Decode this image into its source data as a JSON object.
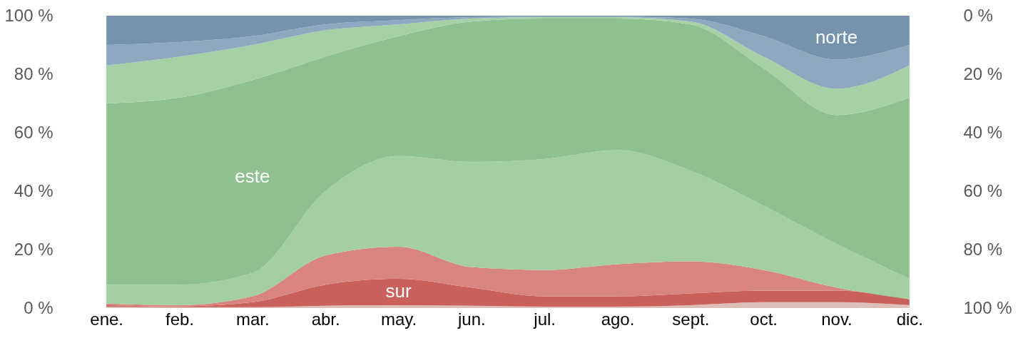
{
  "chart_data": {
    "type": "area",
    "stacked": true,
    "categories": [
      "ene.",
      "feb.",
      "mar.",
      "abr.",
      "may.",
      "jun.",
      "jul.",
      "ago.",
      "sept.",
      "oct.",
      "nov.",
      "dic."
    ],
    "ylim": [
      0,
      100
    ],
    "yticks": [
      {
        "value": 0,
        "label": "0 %"
      },
      {
        "value": 20,
        "label": "20 %"
      },
      {
        "value": 40,
        "label": "40 %"
      },
      {
        "value": 60,
        "label": "60 %"
      },
      {
        "value": 80,
        "label": "80 %"
      },
      {
        "value": 100,
        "label": "100 %"
      }
    ],
    "y2lim": [
      100,
      0
    ],
    "y2ticks": [
      {
        "value": 0,
        "label": "0 %"
      },
      {
        "value": 20,
        "label": "20 %"
      },
      {
        "value": 40,
        "label": "40 %"
      },
      {
        "value": 60,
        "label": "60 %"
      },
      {
        "value": 80,
        "label": "80 %"
      },
      {
        "value": 100,
        "label": "100 %"
      }
    ],
    "series": [
      {
        "color": "#dcc0b8",
        "values": [
          0.5,
          0.3,
          0.3,
          0.8,
          1,
          0.8,
          0.5,
          0.5,
          1,
          2,
          2,
          1
        ]
      },
      {
        "name": "sur",
        "color": "#c9605c",
        "values": [
          0.5,
          0.3,
          1.7,
          7.2,
          9,
          6.2,
          3.5,
          3.5,
          4,
          4,
          4,
          2
        ]
      },
      {
        "color": "#d8857f",
        "values": [
          0.5,
          0.4,
          2,
          10,
          11,
          7,
          9,
          11,
          11,
          7,
          1,
          0
        ]
      },
      {
        "color": "#a3cfa3",
        "values": [
          6.5,
          7,
          8,
          22,
          31,
          36,
          38,
          39,
          31,
          22,
          15,
          7
        ]
      },
      {
        "name": "este",
        "color": "#8fc08f",
        "values": [
          62,
          64,
          66,
          46,
          41,
          48,
          48,
          45,
          50,
          47,
          44,
          62
        ]
      },
      {
        "color": "#a6d0a6",
        "values": [
          13,
          14,
          12,
          9,
          4,
          1,
          0.5,
          0.5,
          1,
          4,
          9,
          11
        ]
      },
      {
        "color": "#8ea9bf",
        "values": [
          7,
          5,
          3,
          2,
          1.5,
          0.5,
          0.2,
          0.2,
          1,
          7,
          10,
          7
        ]
      },
      {
        "name": "norte",
        "color": "#7593ad",
        "values": [
          10,
          9,
          7,
          3,
          1.5,
          0.5,
          0.3,
          0.3,
          1,
          7,
          15,
          10
        ]
      }
    ],
    "grid": false,
    "legend": false
  }
}
